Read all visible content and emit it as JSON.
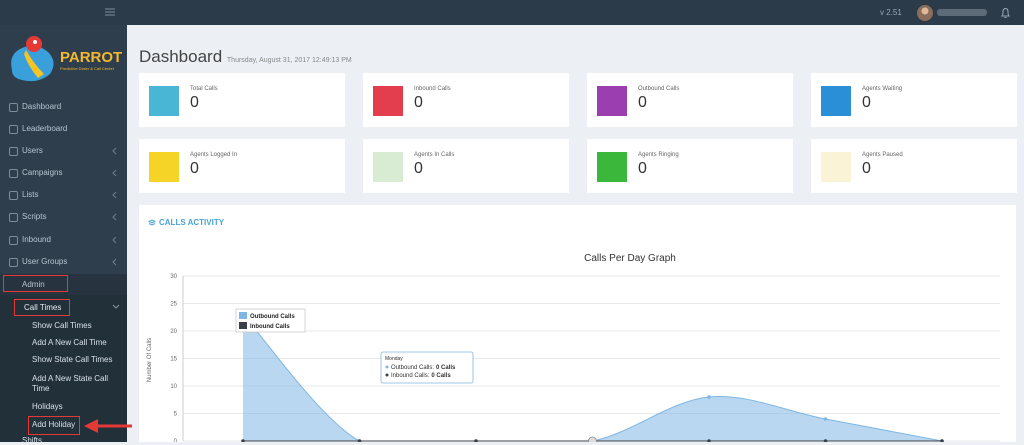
{
  "topbar": {
    "version": "v 2.51"
  },
  "logo": {
    "name": "PARROT",
    "tagline": "Predictive Dialer & Call Center"
  },
  "sidebar": {
    "menu": [
      "Dashboard",
      "Leaderboard",
      "Users",
      "Campaigns",
      "Lists",
      "Scripts",
      "Inbound",
      "User Groups"
    ],
    "admin": "Admin",
    "call_times": "Call Times",
    "call_time_links": [
      "Show Call Times",
      "Add A New Call Time",
      "Show State Call Times",
      "Add A New State Call Time",
      "Holidays",
      "Add Holiday"
    ],
    "next": "Shifts"
  },
  "header": {
    "title": "Dashboard",
    "subtitle": "Thursday, August 31, 2017 12:49:13 PM"
  },
  "cards": [
    {
      "label": "Total Calls",
      "value": 0
    },
    {
      "label": "Inbound Calls",
      "value": 0
    },
    {
      "label": "Outbound Calls",
      "value": 0
    },
    {
      "label": "Agents Waiting",
      "value": 0
    },
    {
      "label": "Agents Logged In",
      "value": 0
    },
    {
      "label": "Agents In Calls",
      "value": 0
    },
    {
      "label": "Agents Ringing",
      "value": 0
    },
    {
      "label": "Agents Paused",
      "value": 0
    }
  ],
  "panel": {
    "title": "CALLS ACTIVITY"
  },
  "chart_data": {
    "type": "area",
    "title": "Calls Per Day Graph",
    "y_label": "Number Of Calls",
    "categories": [
      null,
      null,
      null,
      null,
      null,
      null,
      null
    ],
    "series": [
      {
        "name": "Outbound Calls",
        "color": "#7fb6e4",
        "values": [
          23,
          0,
          0,
          0,
          8,
          4,
          0
        ]
      },
      {
        "name": "Inbound Calls",
        "color": "#3a3f48",
        "values": [
          0,
          0,
          0,
          0,
          0,
          0,
          0
        ]
      }
    ],
    "ylim": [
      0,
      30
    ],
    "yticks": [
      0,
      5,
      10,
      15,
      20,
      25,
      30
    ],
    "grid": true,
    "legend": "upper left",
    "tooltip": {
      "title": "Monday",
      "lines": [
        {
          "label": "Outbound Calls:",
          "value": "0 Calls"
        },
        {
          "label": "Inbound Calls:",
          "value": "0 Calls"
        }
      ]
    }
  }
}
